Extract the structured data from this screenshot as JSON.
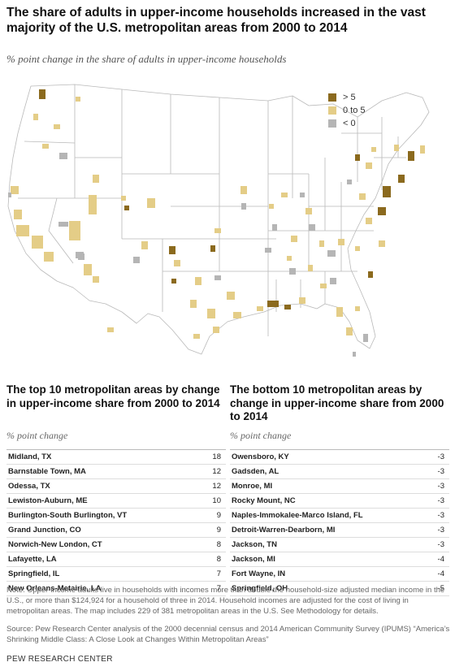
{
  "title": "The share of adults in upper-income households increased in the vast majority of the U.S. metropolitan areas from 2000 to 2014",
  "subtitle": "% point change in the share of adults in upper-income households",
  "colors": {
    "high": "#8b6a1e",
    "mid": "#e4cd87",
    "neg": "#b5b5b5",
    "state_fill": "#ffffff",
    "state_border": "#b9b9b9"
  },
  "legend": [
    {
      "label": "> 5",
      "color": "#8b6a1e"
    },
    {
      "label": "0 to 5",
      "color": "#e4cd87"
    },
    {
      "label": "< 0",
      "color": "#b5b5b5"
    }
  ],
  "top_table": {
    "title": "The top 10 metropolitan areas by change in upper-income share from 2000 to 2014",
    "unit": "% point change",
    "rows": [
      {
        "name": "Midland, TX",
        "value": "18"
      },
      {
        "name": "Barnstable Town, MA",
        "value": "12"
      },
      {
        "name": "Odessa, TX",
        "value": "12"
      },
      {
        "name": "Lewiston-Auburn, ME",
        "value": "10"
      },
      {
        "name": "Burlington-South Burlington, VT",
        "value": "9"
      },
      {
        "name": "Grand Junction, CO",
        "value": "9"
      },
      {
        "name": "Norwich-New London, CT",
        "value": "8"
      },
      {
        "name": "Lafayette, LA",
        "value": "8"
      },
      {
        "name": "Springfield, IL",
        "value": "7"
      },
      {
        "name": "New Orleans-Metairie, LA",
        "value": "7"
      }
    ]
  },
  "bottom_table": {
    "title": "The bottom 10 metropolitan areas by change in upper-income share from 2000 to 2014",
    "unit": "% point change",
    "rows": [
      {
        "name": "Owensboro, KY",
        "value": "-3"
      },
      {
        "name": "Gadsden, AL",
        "value": "-3"
      },
      {
        "name": "Monroe, MI",
        "value": "-3"
      },
      {
        "name": "Rocky Mount, NC",
        "value": "-3"
      },
      {
        "name": "Naples-Immokalee-Marco Island, FL",
        "value": "-3"
      },
      {
        "name": "Detroit-Warren-Dearborn, MI",
        "value": "-3"
      },
      {
        "name": "Jackson, TN",
        "value": "-3"
      },
      {
        "name": "Jackson, MI",
        "value": "-4"
      },
      {
        "name": "Fort Wayne, IN",
        "value": "-4"
      },
      {
        "name": "Springfield, OH",
        "value": "-5"
      }
    ]
  },
  "note": "Note: Upper-income adults live in households with incomes more than double the household-size adjusted median income in the U.S., or more than $124,924 for a household of three in 2014. Household incomes are adjusted for the cost of living in metropolitan areas. The map includes 229 of 381 metropolitan areas in the U.S. See Methodology for details.",
  "source": "Source: Pew Research Center analysis of the 2000 decennial census and 2014 American Community Survey (IPUMS) “America’s Shrinking Middle Class: A Close Look at Changes Within Metropolitan Areas”",
  "brand": "PEW RESEARCH CENTER"
}
